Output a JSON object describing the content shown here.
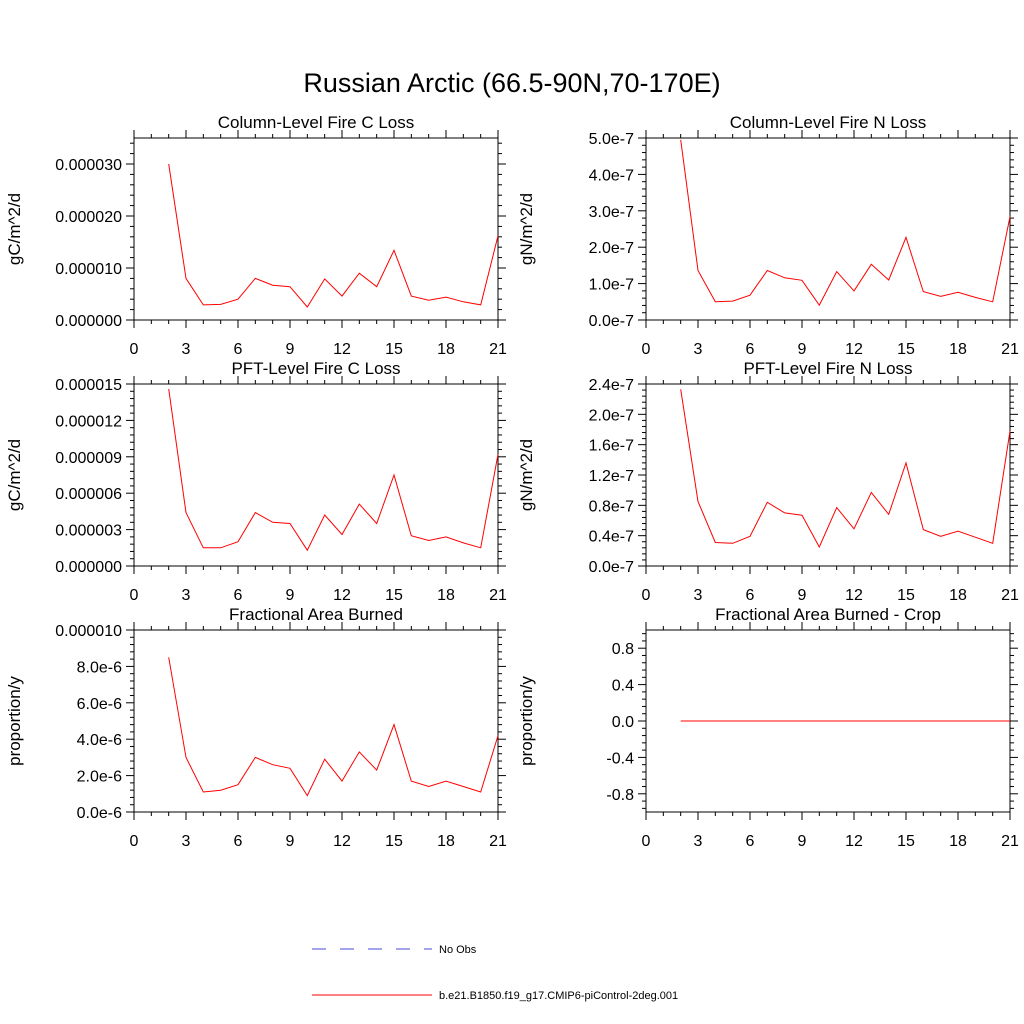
{
  "title": "Russian Arctic (66.5-90N,70-170E)",
  "legend": {
    "entries": [
      {
        "label": "No Obs",
        "color": "#4a4ad6",
        "style": "dashed"
      },
      {
        "label": "b.e21.B1850.f19_g17.CMIP6-piControl-2deg.001",
        "color": "#ff0000",
        "style": "solid"
      }
    ]
  },
  "chart_data": [
    {
      "type": "line",
      "title": "Column-Level Fire C Loss",
      "ylabel": "gC/m^2/d",
      "xlabel": "",
      "xlim": [
        0,
        21
      ],
      "ylim": [
        0,
        3.5e-05
      ],
      "xticks": [
        0,
        3,
        6,
        9,
        12,
        15,
        18,
        21
      ],
      "xtick_labels": [
        "0",
        "3",
        "6",
        "9",
        "12",
        "15",
        "18",
        "21"
      ],
      "yticks": [
        0,
        1e-05,
        2e-05,
        3e-05
      ],
      "ytick_labels": [
        "0.000000",
        "0.000010",
        "0.000020",
        "0.000030"
      ],
      "series": [
        {
          "name": "b.e21.B1850.f19_g17.CMIP6-piControl-2deg.001",
          "color": "#ff0000",
          "x": [
            2,
            3,
            4,
            5,
            6,
            7,
            8,
            9,
            10,
            11,
            12,
            13,
            14,
            15,
            16,
            17,
            18,
            19,
            20,
            21
          ],
          "values": [
            3e-05,
            8e-06,
            2.9e-06,
            3e-06,
            4e-06,
            8e-06,
            6.7e-06,
            6.4e-06,
            2.5e-06,
            7.9e-06,
            4.6e-06,
            9e-06,
            6.4e-06,
            1.34e-05,
            4.6e-06,
            3.8e-06,
            4.4e-06,
            3.5e-06,
            2.9e-06,
            1.62e-05
          ]
        }
      ]
    },
    {
      "type": "line",
      "title": "Column-Level Fire N Loss",
      "ylabel": "gN/m^2/d",
      "xlabel": "",
      "xlim": [
        0,
        21
      ],
      "ylim": [
        0,
        5e-07
      ],
      "xticks": [
        0,
        3,
        6,
        9,
        12,
        15,
        18,
        21
      ],
      "xtick_labels": [
        "0",
        "3",
        "6",
        "9",
        "12",
        "15",
        "18",
        "21"
      ],
      "yticks": [
        0,
        1e-07,
        2e-07,
        3e-07,
        4e-07,
        5e-07
      ],
      "ytick_labels": [
        "0.0e-7",
        "1.0e-7",
        "2.0e-7",
        "3.0e-7",
        "4.0e-7",
        "5.0e-7"
      ],
      "series": [
        {
          "name": "b.e21.B1850.f19_g17.CMIP6-piControl-2deg.001",
          "color": "#ff0000",
          "x": [
            2,
            3,
            4,
            5,
            6,
            7,
            8,
            9,
            10,
            11,
            12,
            13,
            14,
            15,
            16,
            17,
            18,
            19,
            20,
            21
          ],
          "values": [
            4.95e-07,
            1.36e-07,
            5e-08,
            5.2e-08,
            6.8e-08,
            1.36e-07,
            1.16e-07,
            1.09e-07,
            4.1e-08,
            1.33e-07,
            8e-08,
            1.53e-07,
            1.1e-07,
            2.27e-07,
            7.8e-08,
            6.5e-08,
            7.6e-08,
            6.2e-08,
            5e-08,
            2.84e-07
          ]
        }
      ]
    },
    {
      "type": "line",
      "title": "PFT-Level Fire C Loss",
      "ylabel": "gC/m^2/d",
      "xlabel": "",
      "xlim": [
        0,
        21
      ],
      "ylim": [
        0,
        1.5e-05
      ],
      "xticks": [
        0,
        3,
        6,
        9,
        12,
        15,
        18,
        21
      ],
      "xtick_labels": [
        "0",
        "3",
        "6",
        "9",
        "12",
        "15",
        "18",
        "21"
      ],
      "yticks": [
        0,
        3e-06,
        6e-06,
        9e-06,
        1.2e-05,
        1.5e-05
      ],
      "ytick_labels": [
        "0.000000",
        "0.000003",
        "0.000006",
        "0.000009",
        "0.000012",
        "0.000015"
      ],
      "series": [
        {
          "name": "b.e21.B1850.f19_g17.CMIP6-piControl-2deg.001",
          "color": "#ff0000",
          "x": [
            2,
            3,
            4,
            5,
            6,
            7,
            8,
            9,
            10,
            11,
            12,
            13,
            14,
            15,
            16,
            17,
            18,
            19,
            20,
            21
          ],
          "values": [
            1.46e-05,
            4.4e-06,
            1.5e-06,
            1.5e-06,
            2e-06,
            4.4e-06,
            3.6e-06,
            3.5e-06,
            1.3e-06,
            4.2e-06,
            2.6e-06,
            5.1e-06,
            3.5e-06,
            7.5e-06,
            2.5e-06,
            2.1e-06,
            2.4e-06,
            1.9e-06,
            1.5e-06,
            9.2e-06
          ]
        }
      ]
    },
    {
      "type": "line",
      "title": "PFT-Level Fire N Loss",
      "ylabel": "gN/m^2/d",
      "xlabel": "",
      "xlim": [
        0,
        21
      ],
      "ylim": [
        0,
        2.4e-07
      ],
      "xticks": [
        0,
        3,
        6,
        9,
        12,
        15,
        18,
        21
      ],
      "xtick_labels": [
        "0",
        "3",
        "6",
        "9",
        "12",
        "15",
        "18",
        "21"
      ],
      "yticks": [
        0,
        4e-08,
        8e-08,
        1.2e-07,
        1.6e-07,
        2e-07,
        2.4e-07
      ],
      "ytick_labels": [
        "0.0e-7",
        "0.4e-7",
        "0.8e-7",
        "1.2e-7",
        "1.6e-7",
        "2.0e-7",
        "2.4e-7"
      ],
      "series": [
        {
          "name": "b.e21.B1850.f19_g17.CMIP6-piControl-2deg.001",
          "color": "#ff0000",
          "x": [
            2,
            3,
            4,
            5,
            6,
            7,
            8,
            9,
            10,
            11,
            12,
            13,
            14,
            15,
            16,
            17,
            18,
            19,
            20,
            21
          ],
          "values": [
            2.33e-07,
            8.5e-08,
            3.1e-08,
            3e-08,
            3.9e-08,
            8.4e-08,
            7e-08,
            6.7e-08,
            2.5e-08,
            7.7e-08,
            4.9e-08,
            9.7e-08,
            6.8e-08,
            1.36e-07,
            4.8e-08,
            3.9e-08,
            4.6e-08,
            3.8e-08,
            3e-08,
            1.78e-07
          ]
        }
      ]
    },
    {
      "type": "line",
      "title": "Fractional Area Burned",
      "ylabel": "proportion/y",
      "xlabel": "",
      "xlim": [
        0,
        21
      ],
      "ylim": [
        0,
        1e-05
      ],
      "xticks": [
        0,
        3,
        6,
        9,
        12,
        15,
        18,
        21
      ],
      "xtick_labels": [
        "0",
        "3",
        "6",
        "9",
        "12",
        "15",
        "18",
        "21"
      ],
      "yticks": [
        0,
        2e-06,
        4e-06,
        6e-06,
        8e-06,
        1e-05
      ],
      "ytick_labels": [
        "0.0e-6",
        "2.0e-6",
        "4.0e-6",
        "6.0e-6",
        "8.0e-6",
        "0.000010"
      ],
      "series": [
        {
          "name": "b.e21.B1850.f19_g17.CMIP6-piControl-2deg.001",
          "color": "#ff0000",
          "x": [
            2,
            3,
            4,
            5,
            6,
            7,
            8,
            9,
            10,
            11,
            12,
            13,
            14,
            15,
            16,
            17,
            18,
            19,
            20,
            21
          ],
          "values": [
            8.5e-06,
            3e-06,
            1.1e-06,
            1.2e-06,
            1.5e-06,
            3e-06,
            2.6e-06,
            2.4e-06,
            9e-07,
            2.9e-06,
            1.7e-06,
            3.3e-06,
            2.3e-06,
            4.8e-06,
            1.7e-06,
            1.4e-06,
            1.7e-06,
            1.4e-06,
            1.1e-06,
            4.2e-06
          ]
        }
      ]
    },
    {
      "type": "line",
      "title": "Fractional Area Burned - Crop",
      "ylabel": "proportion/y",
      "xlabel": "",
      "xlim": [
        0,
        21
      ],
      "ylim": [
        -1,
        1
      ],
      "xticks": [
        0,
        3,
        6,
        9,
        12,
        15,
        18,
        21
      ],
      "xtick_labels": [
        "0",
        "3",
        "6",
        "9",
        "12",
        "15",
        "18",
        "21"
      ],
      "yticks": [
        -0.8,
        -0.4,
        0,
        0.4,
        0.8
      ],
      "ytick_labels": [
        "-0.8",
        "-0.4",
        "0.0",
        "0.4",
        "0.8"
      ],
      "series": [
        {
          "name": "b.e21.B1850.f19_g17.CMIP6-piControl-2deg.001",
          "color": "#ff0000",
          "x": [
            2,
            3,
            4,
            5,
            6,
            7,
            8,
            9,
            10,
            11,
            12,
            13,
            14,
            15,
            16,
            17,
            18,
            19,
            20,
            21
          ],
          "values": [
            0,
            0,
            0,
            0,
            0,
            0,
            0,
            0,
            0,
            0,
            0,
            0,
            0,
            0,
            0,
            0,
            0,
            0,
            0,
            0
          ]
        }
      ]
    }
  ]
}
